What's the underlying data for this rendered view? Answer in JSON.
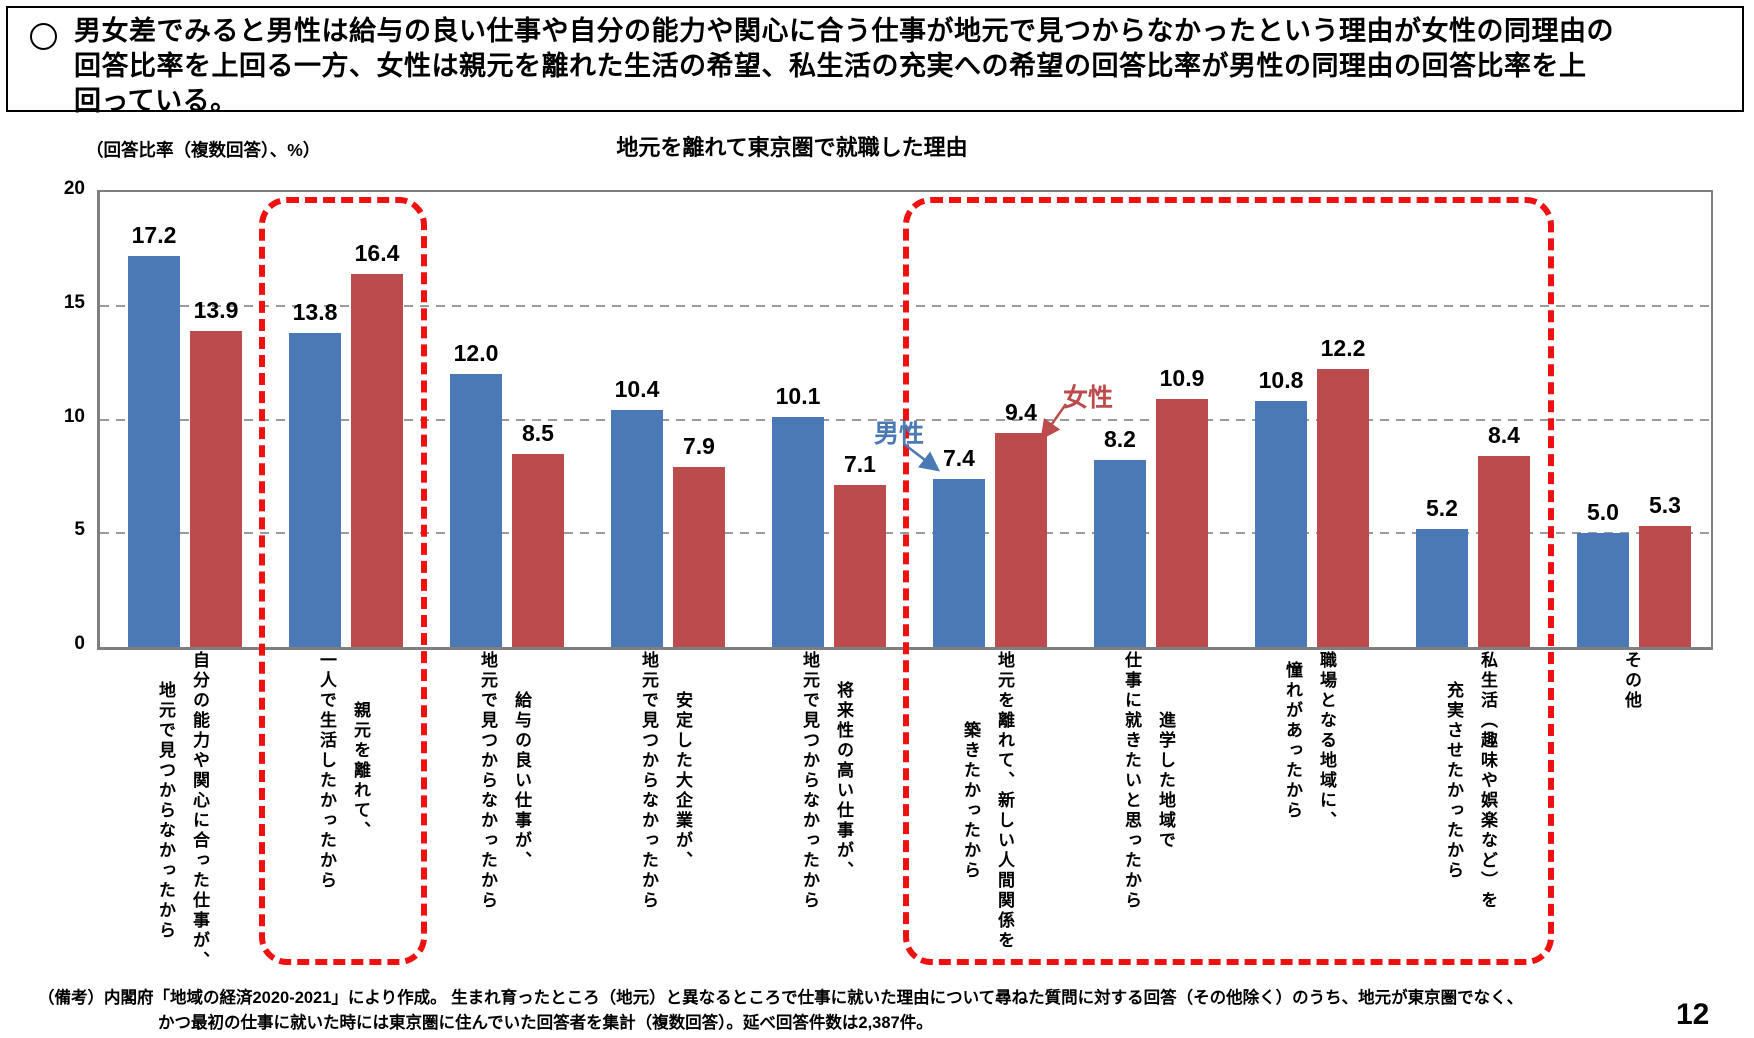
{
  "header": {
    "bullet": "circle",
    "text": "男女差でみると男性は給与の良い仕事や自分の能力や関心に合う仕事が地元で見つからなかったという理由が女性の同理由の\n回答比率を上回る一方、女性は親元を離れた生活の希望、私生活の充実への希望の回答比率が男性の同理由の回答比率を上\n回っている。"
  },
  "chart_data": {
    "type": "bar",
    "title": "地元を離れて東京圏で就職した理由",
    "unit_label": "（回答比率（複数回答）、%）",
    "categories": [
      "自分の能力や関心に合った仕事が、\n地元で見つからなかったから",
      "親元を離れて、\n一人で生活したかったから",
      "給与の良い仕事が、\n地元で見つからなかったから",
      "安定した大企業が、\n地元で見つからなかったから",
      "将来性の高い仕事が、\n地元で見つからなかったから",
      "地元を離れて、新しい人間関係を\n築きたかったから",
      "進学した地域で\n仕事に就きたいと思ったから",
      "職場となる地域に、\n憧れがあったから",
      "私生活（趣味や娯楽など）を\n充実させたかったから",
      "その他"
    ],
    "series": [
      {
        "name": "男性",
        "color": "#4A79B5",
        "values": [
          17.2,
          13.8,
          12.0,
          10.4,
          10.1,
          7.4,
          8.2,
          10.8,
          5.2,
          5.0
        ]
      },
      {
        "name": "女性",
        "color": "#BB4B4D",
        "values": [
          13.9,
          16.4,
          8.5,
          7.9,
          7.1,
          9.4,
          10.9,
          12.2,
          8.4,
          5.3
        ]
      }
    ],
    "ylim": [
      0,
      20
    ],
    "y_ticks": [
      0,
      5,
      10,
      15,
      20
    ],
    "grid": "horizontal-dashed",
    "legend": "inline-annotations-with-arrows",
    "highlight_color": "#ee1111",
    "highlight_boxes": [
      {
        "style": "red-dashed-rounded",
        "from_category": 2,
        "to_category": 2
      },
      {
        "style": "red-dashed-rounded",
        "from_category": 6,
        "to_category": 9
      }
    ]
  },
  "footer": {
    "line1": "（備考）内閣府「地域の経済2020-2021」により作成。 生まれ育ったところ（地元）と異なるところで仕事に就いた理由について尋ねた質問に対する回答（その他除く）のうち、地元が東京圏でなく、",
    "line2": "かつ最初の仕事に就いた時には東京圏に住んでいた回答者を集計（複数回答）。延べ回答件数は2,387件。",
    "page_number": "12"
  }
}
